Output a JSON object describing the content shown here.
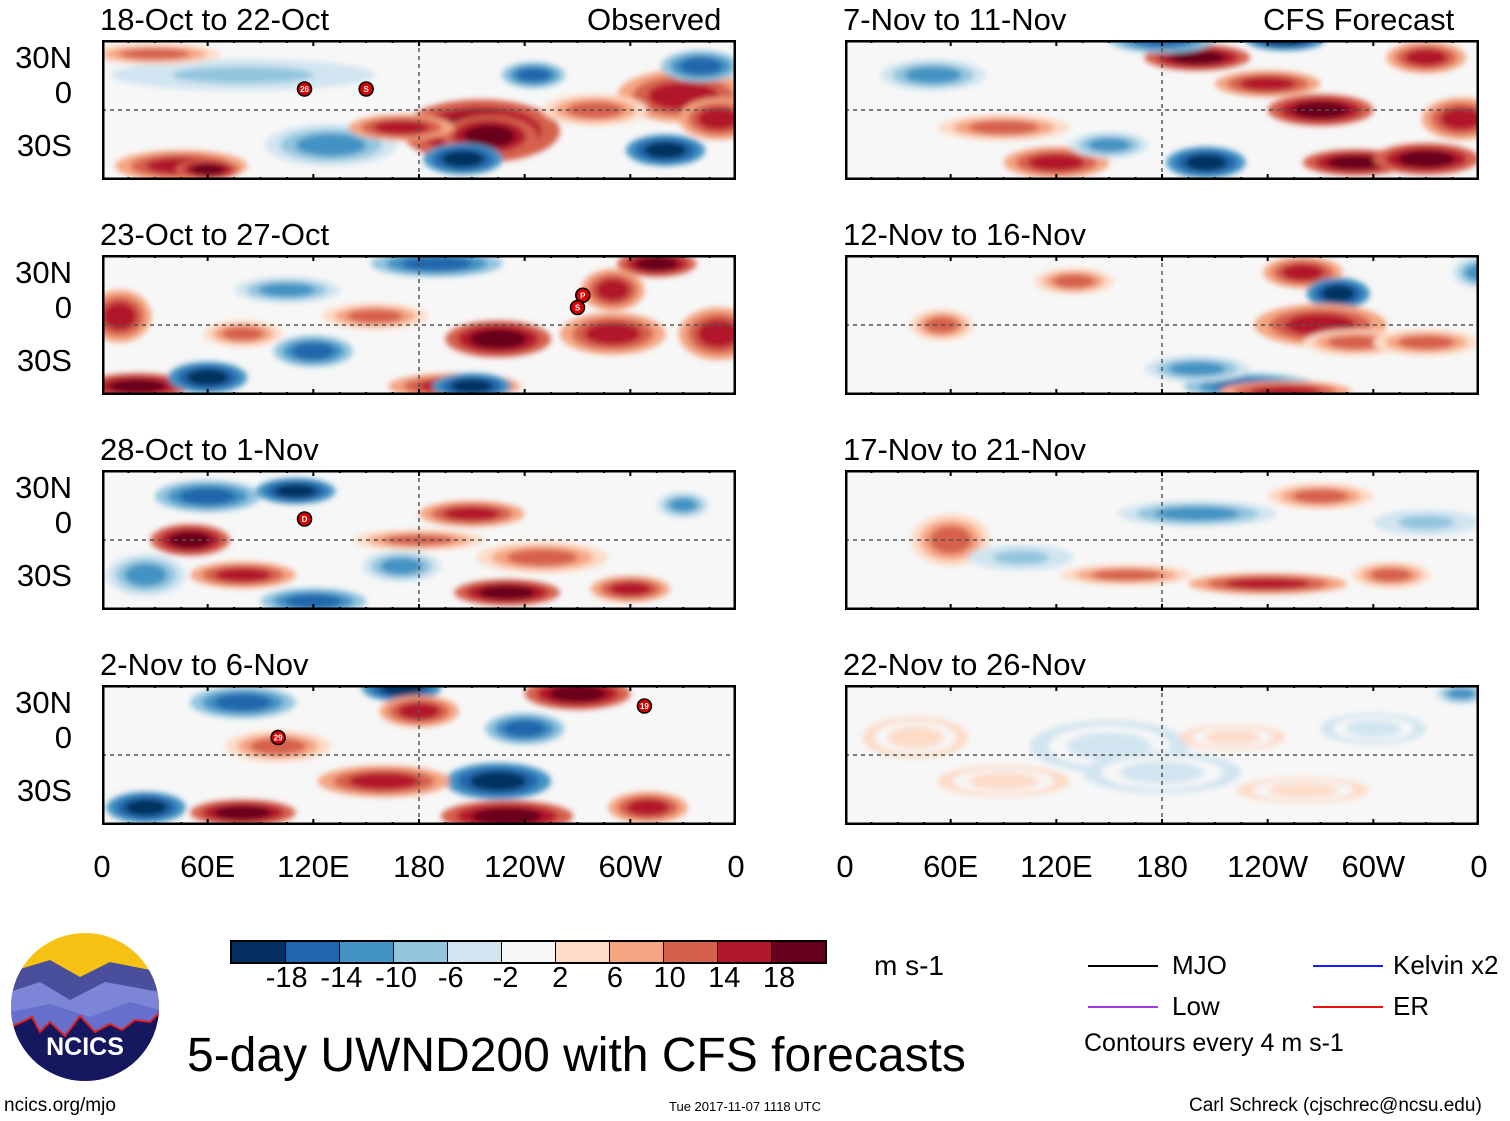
{
  "title": "5-day UWND200 with CFS forecasts",
  "left_header_right": "Observed",
  "right_header_right": "CFS Forecast",
  "logo_text": "NCICS",
  "footer": {
    "left": "ncics.org/mjo",
    "center": "Tue 2017-11-07 1118 UTC",
    "right": "Carl Schreck (cjschrec@ncsu.edu)"
  },
  "units": "m s-1",
  "legend": {
    "mjo": "MJO",
    "kelvin": "Kelvin x2",
    "low": "Low",
    "er": "ER",
    "contours": "Contours every 4 m s-1"
  },
  "legend_colors": {
    "mjo": "#000000",
    "kelvin": "#1a1aff",
    "low": "#a23be8",
    "er": "#ee1111"
  },
  "chart_data": {
    "type": "heatmap",
    "variable": "200-hPa zonal wind anomaly, 5-day mean",
    "ylabels": [
      "30N",
      "0",
      "30S"
    ],
    "xlabels": [
      "0",
      "60E",
      "120E",
      "180",
      "120W",
      "60W",
      "0"
    ],
    "lat_range": [
      -40,
      40
    ],
    "lon_range": [
      0,
      360
    ],
    "colorbar": {
      "levels": [
        "-18",
        "-14",
        "-10",
        "-6",
        "-2",
        "2",
        "6",
        "10",
        "14",
        "18"
      ],
      "colors": [
        "#053061",
        "#2166ac",
        "#4393c3",
        "#92c5de",
        "#d1e5f0",
        "#f7f7f7",
        "#fddbc7",
        "#f4a582",
        "#d6604d",
        "#b2182b",
        "#67001f"
      ]
    },
    "panels": [
      {
        "title": "18-Oct to 22-Oct",
        "source": "Observed",
        "storms": [
          "26",
          "S"
        ]
      },
      {
        "title": "23-Oct to 27-Oct",
        "source": "Observed",
        "storms": [
          "P",
          "S"
        ]
      },
      {
        "title": "28-Oct to 1-Nov",
        "source": "Observed",
        "storms": [
          "D"
        ]
      },
      {
        "title": "2-Nov to 6-Nov",
        "source": "Observed",
        "storms": [
          "29",
          "19"
        ]
      },
      {
        "title": "7-Nov to 11-Nov",
        "source": "CFS Forecast",
        "storms": []
      },
      {
        "title": "12-Nov to 16-Nov",
        "source": "CFS Forecast",
        "storms": []
      },
      {
        "title": "17-Nov to 21-Nov",
        "source": "CFS Forecast",
        "storms": []
      },
      {
        "title": "22-Nov to 26-Nov",
        "source": "CFS Forecast",
        "storms": []
      }
    ]
  }
}
